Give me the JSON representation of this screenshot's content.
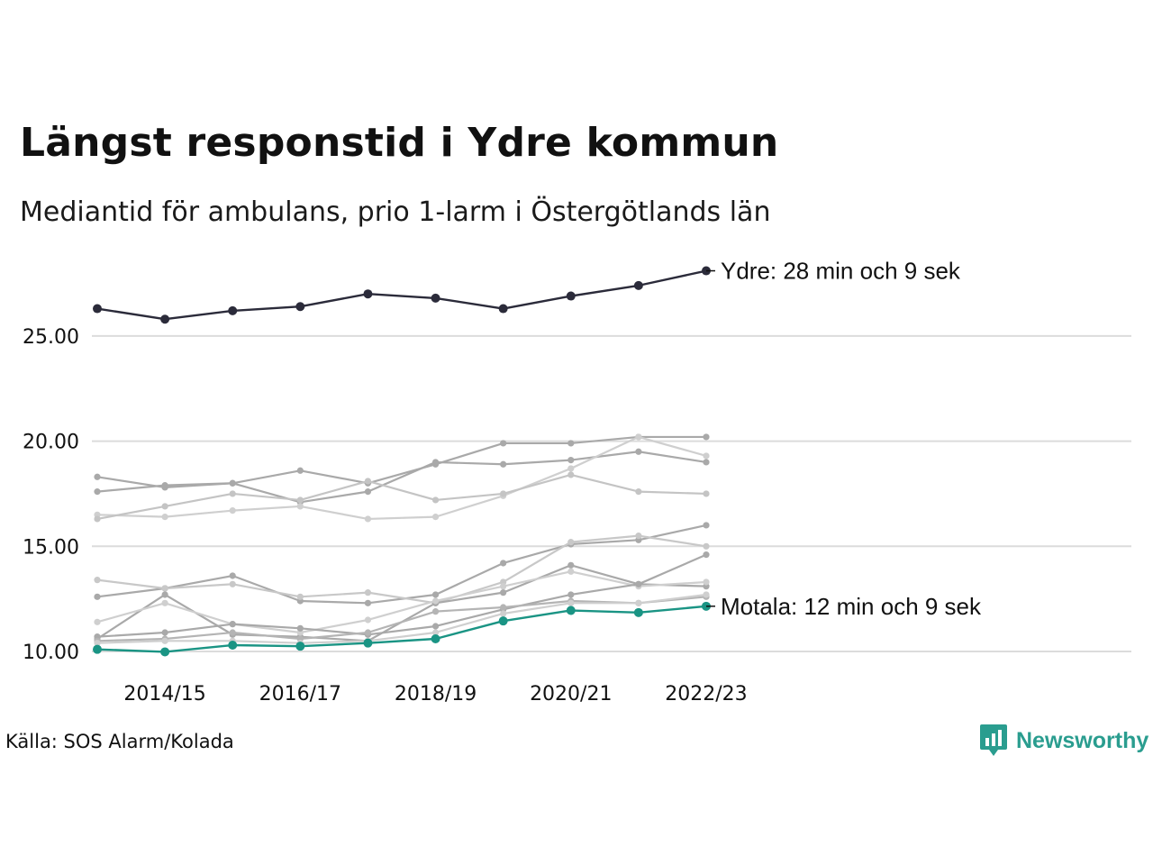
{
  "title": "Längst responstid i Ydre kommun",
  "subtitle": "Mediantid för ambulans, prio 1-larm i Östergötlands län",
  "source": "Källa: SOS Alarm/Kolada",
  "brand": {
    "name": "Newsworthy",
    "icon": "newsworthy-logo-icon",
    "color": "#2a9d8f"
  },
  "chart_data": {
    "type": "line",
    "x": [
      "2013/14",
      "2014/15",
      "2015/16",
      "2016/17",
      "2017/18",
      "2018/19",
      "2019/20",
      "2020/21",
      "2021/22",
      "2022/23"
    ],
    "x_tick_labels": [
      "2014/15",
      "2016/17",
      "2018/19",
      "2020/21",
      "2022/23"
    ],
    "y_ticks": [
      "10.00",
      "15.00",
      "20.00",
      "25.00"
    ],
    "ylim": [
      10,
      28.5
    ],
    "grid": "horizontal",
    "highlight": [
      {
        "label": "Ydre: 28 min och 9 sek",
        "color": "#2b2b3a",
        "values": [
          26.3,
          25.8,
          26.2,
          26.4,
          27.0,
          26.8,
          26.3,
          26.9,
          27.4,
          28.1
        ]
      },
      {
        "label": "Motala: 12 min och 9 sek",
        "color": "#1a9484",
        "values": [
          10.1,
          9.98,
          10.3,
          10.25,
          10.4,
          10.6,
          11.45,
          11.95,
          11.85,
          12.15
        ]
      }
    ],
    "background_series": [
      {
        "color": "#a9a9a9",
        "values": [
          18.3,
          17.8,
          18.0,
          17.1,
          17.6,
          19.0,
          18.9,
          19.1,
          19.5,
          19.0
        ]
      },
      {
        "color": "#a9a9a9",
        "values": [
          17.6,
          17.9,
          18.0,
          18.6,
          18.0,
          18.9,
          19.9,
          19.9,
          20.2,
          20.2
        ]
      },
      {
        "color": "#cfcfcf",
        "values": [
          16.5,
          16.4,
          16.7,
          16.9,
          16.3,
          16.4,
          17.4,
          18.7,
          20.2,
          19.3
        ]
      },
      {
        "color": "#c4c4c4",
        "values": [
          16.3,
          16.9,
          17.5,
          17.2,
          18.1,
          17.2,
          17.5,
          18.4,
          17.6,
          17.5
        ]
      },
      {
        "color": "#a9a9a9",
        "values": [
          12.6,
          13.0,
          13.6,
          12.4,
          12.3,
          12.7,
          14.2,
          15.1,
          15.3,
          16.0
        ]
      },
      {
        "color": "#c8c8c8",
        "values": [
          13.4,
          13.0,
          13.2,
          12.6,
          12.8,
          12.3,
          13.3,
          15.2,
          15.5,
          15.0
        ]
      },
      {
        "color": "#a9a9a9",
        "values": [
          10.6,
          12.7,
          10.8,
          10.7,
          10.5,
          12.3,
          12.8,
          14.1,
          13.2,
          13.1
        ]
      },
      {
        "color": "#cfcfcf",
        "values": [
          11.4,
          12.3,
          11.3,
          10.9,
          11.5,
          12.4,
          13.1,
          13.8,
          13.1,
          13.3
        ]
      },
      {
        "color": "#a9a9a9",
        "values": [
          10.7,
          10.9,
          11.3,
          11.1,
          10.8,
          11.2,
          12.0,
          12.7,
          13.2,
          14.6
        ]
      },
      {
        "color": "#b4b4b4",
        "values": [
          10.5,
          10.6,
          10.9,
          10.6,
          10.9,
          11.9,
          12.1,
          12.4,
          12.3,
          12.6
        ]
      },
      {
        "color": "#cfcfcf",
        "values": [
          10.4,
          10.5,
          10.5,
          10.4,
          10.5,
          10.9,
          11.8,
          12.3,
          12.3,
          12.7
        ]
      }
    ]
  }
}
